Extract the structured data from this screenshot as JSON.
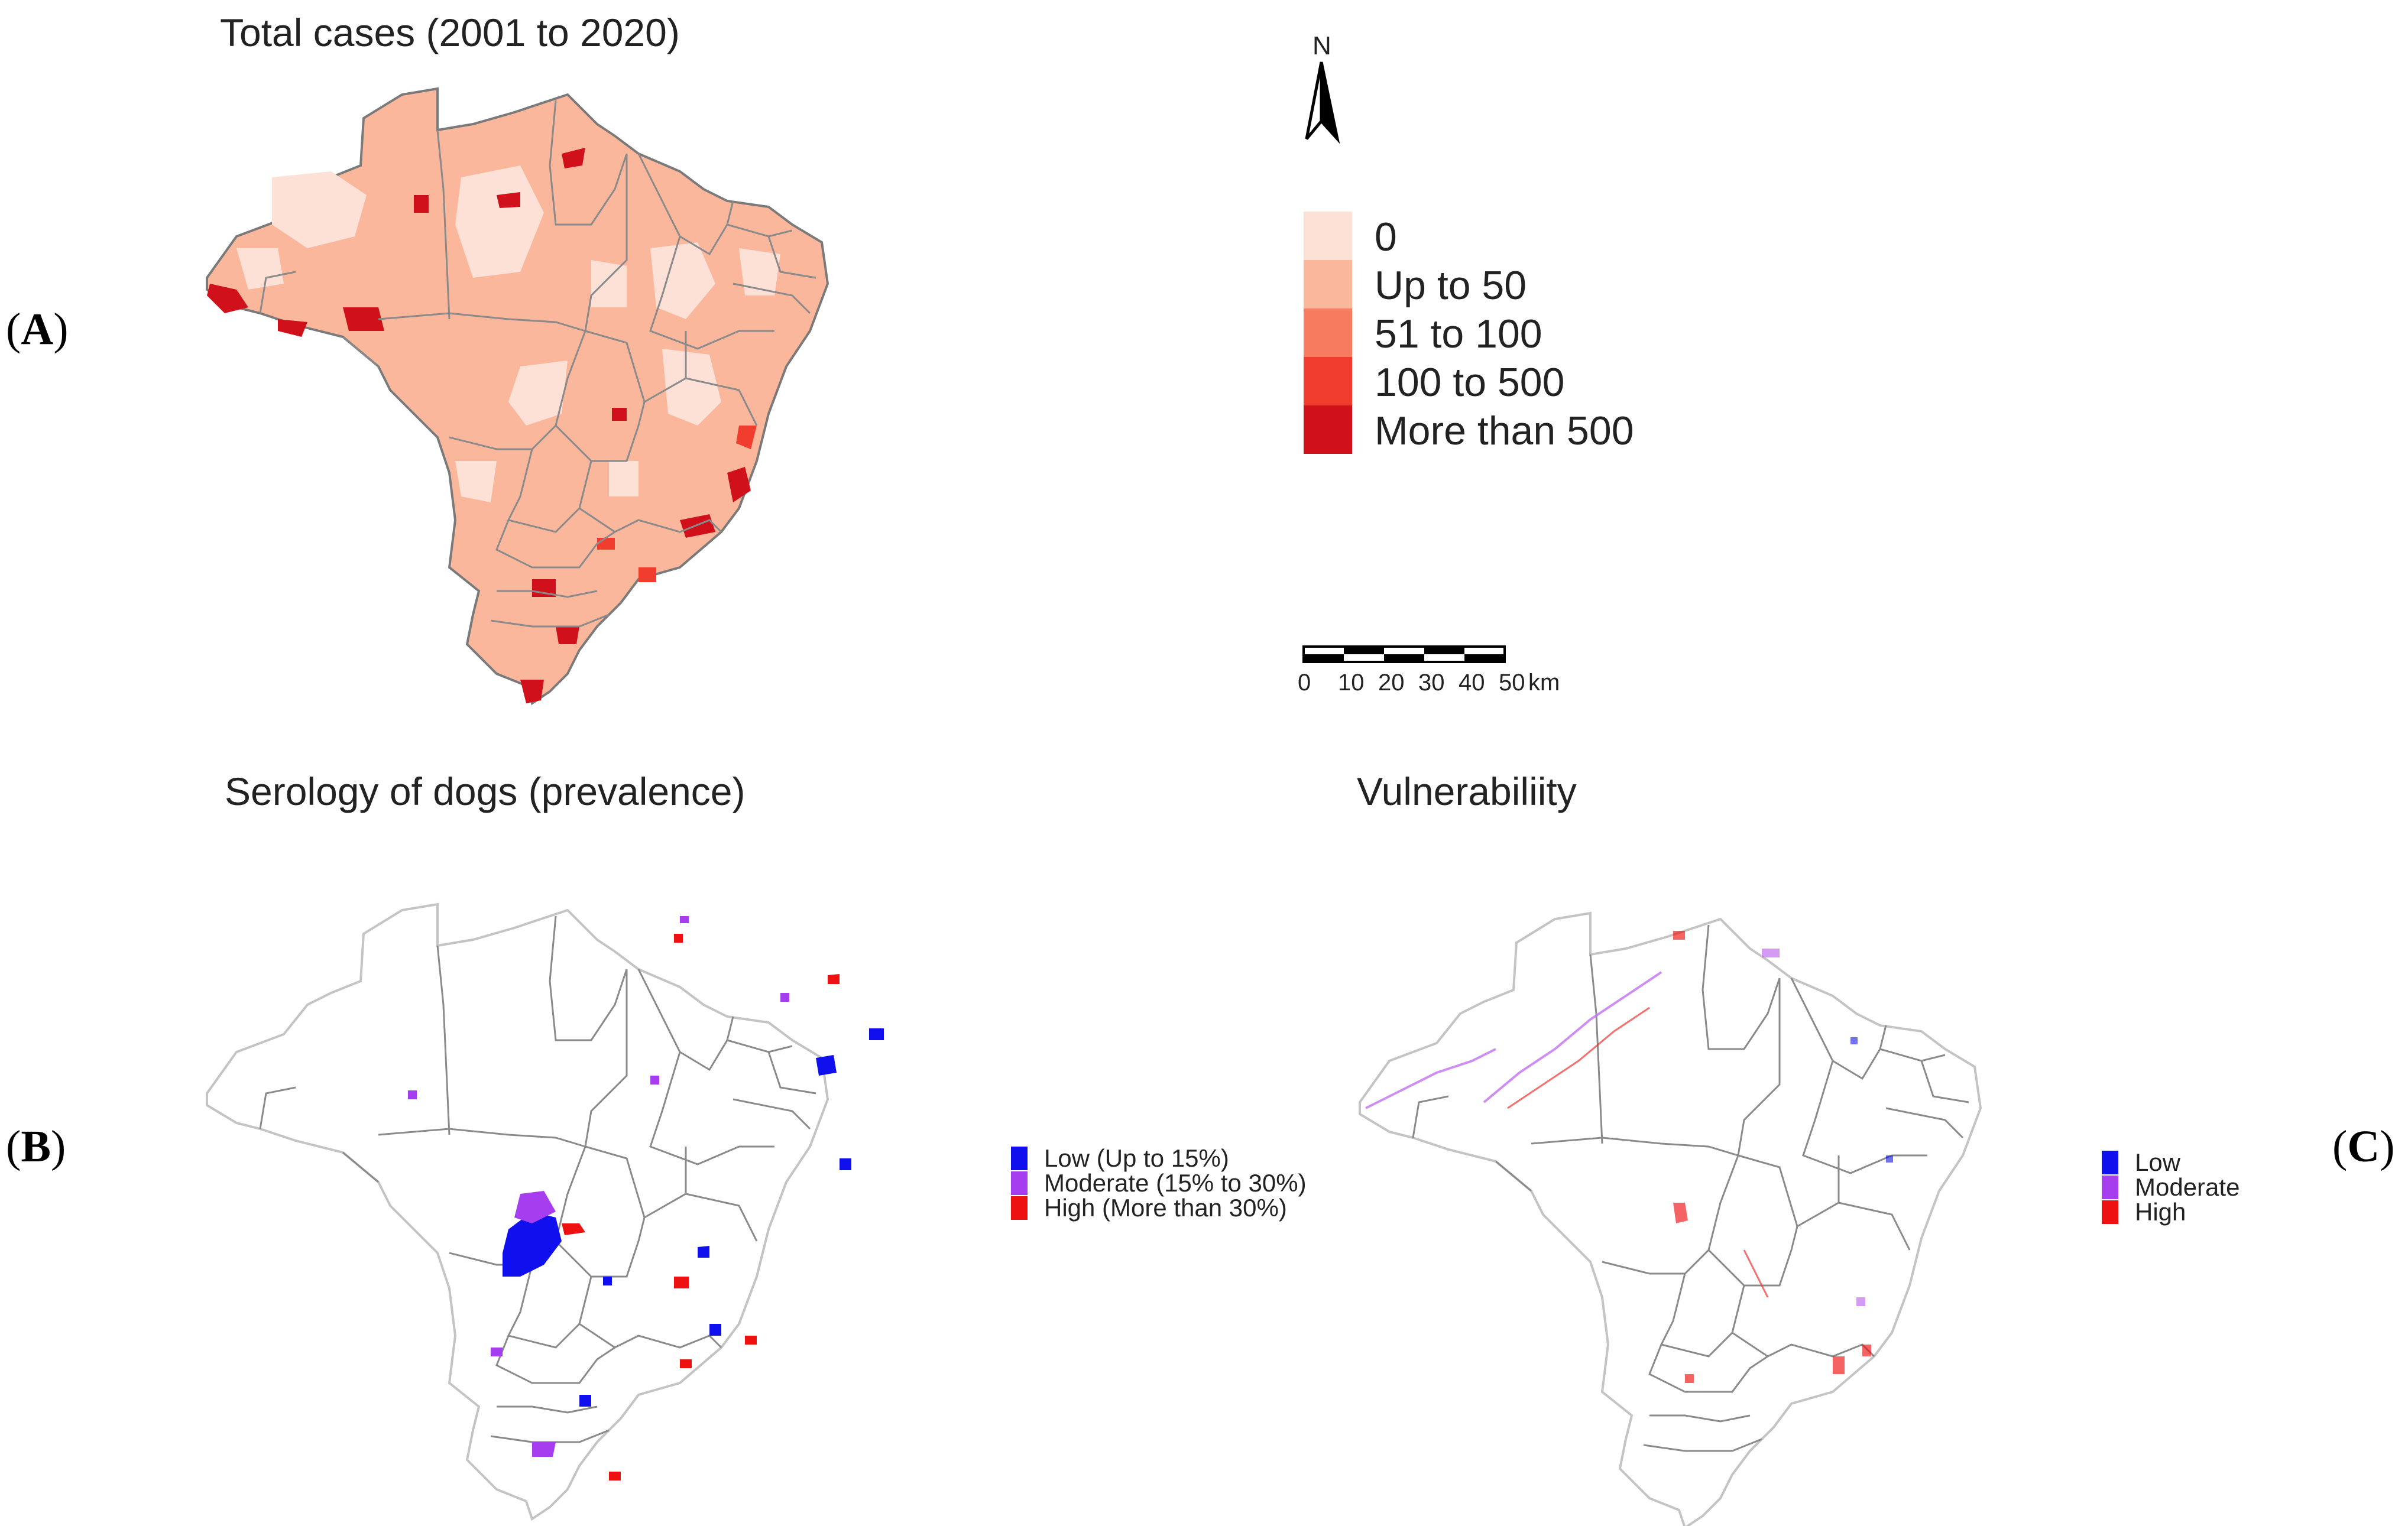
{
  "panels": {
    "a": {
      "letter": "A",
      "title": "Total cases (2001 to 2020)"
    },
    "b": {
      "letter": "B",
      "title": "Serology of dogs (prevalence)"
    },
    "c": {
      "letter": "C",
      "title": "Vulnerabiliity"
    }
  },
  "north_arrow": {
    "label": "N"
  },
  "legend_cases": [
    {
      "label": "0",
      "color": "#fde0d6"
    },
    {
      "label": "Up to 50",
      "color": "#fbb79c"
    },
    {
      "label": "51 to 100",
      "color": "#f77b5f"
    },
    {
      "label": "100 to 500",
      "color": "#f03d2e"
    },
    {
      "label": "More than 500",
      "color": "#d0101a"
    }
  ],
  "legend_serology": [
    {
      "label": "Low (Up to 15%)",
      "color": "#1010ee"
    },
    {
      "label": "Moderate (15% to 30%)",
      "color": "#a63ef0"
    },
    {
      "label": "High (More than 30%)",
      "color": "#ee1111"
    }
  ],
  "legend_vulnerability": [
    {
      "label": "Low",
      "color": "#1010ee"
    },
    {
      "label": "Moderate",
      "color": "#a63ef0"
    },
    {
      "label": "High",
      "color": "#ee1111"
    }
  ],
  "scale_bar": {
    "ticks": [
      "0",
      "10",
      "20",
      "30",
      "40",
      "50"
    ],
    "unit": "km"
  }
}
